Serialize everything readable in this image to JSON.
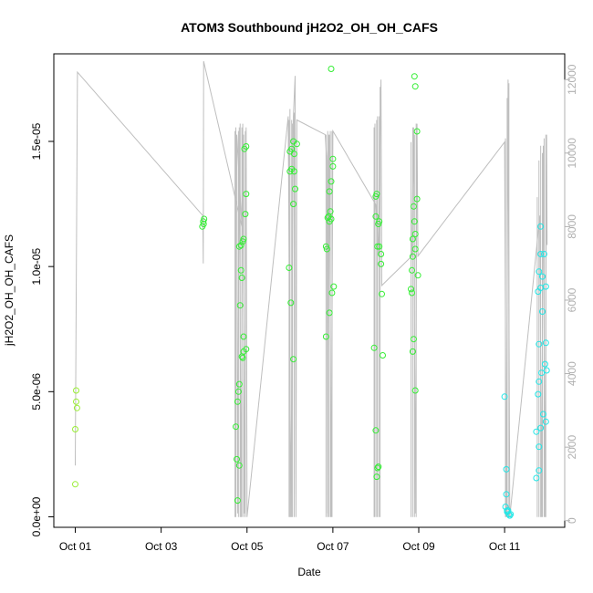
{
  "chart_data": {
    "type": "scatter",
    "title": "ATOM3 Southbound jH2O2_OH_OH_CAFS",
    "xlabel": "Date",
    "ylabel": "jH2O2_OH_OH_CAFS",
    "x_ticks": [
      {
        "label": "Oct 01",
        "day": 1
      },
      {
        "label": "Oct 03",
        "day": 3
      },
      {
        "label": "Oct 05",
        "day": 5
      },
      {
        "label": "Oct 07",
        "day": 7
      },
      {
        "label": "Oct 09",
        "day": 9
      },
      {
        "label": "Oct 11",
        "day": 11
      }
    ],
    "xlim": [
      0.5,
      12.4
    ],
    "y_ticks": [
      {
        "label": "0.0e+00",
        "value": 0
      },
      {
        "label": "5.0e-06",
        "value": 5e-06
      },
      {
        "label": "1.0e-05",
        "value": 1e-05
      },
      {
        "label": "1.5e-05",
        "value": 1.5e-05
      }
    ],
    "ylim": [
      -4.2e-07,
      1.85e-05
    ],
    "y2_ticks": [
      {
        "label": "0",
        "value": 0
      },
      {
        "label": "2000",
        "value": 2000
      },
      {
        "label": "4000",
        "value": 4000
      },
      {
        "label": "6000",
        "value": 6000
      },
      {
        "label": "8000",
        "value": 8000
      },
      {
        "label": "10000",
        "value": 10000
      },
      {
        "label": "12000",
        "value": 12000
      }
    ],
    "y2lim": [
      -180,
      12700
    ],
    "colors": {
      "altitude_line": "#bebebe",
      "points_green": "#33ee33",
      "points_yellowgreen": "#99ee33",
      "points_cyan": "#22e6e6",
      "axis": "#000000",
      "axis_right": "#b0b0b0"
    },
    "series": [
      {
        "color_key": "points_yellowgreen",
        "points": [
          [
            1.02,
            5.05e-06
          ],
          [
            1.02,
            4.6e-06
          ],
          [
            1.04,
            4.35e-06
          ],
          [
            1.0,
            3.5e-06
          ],
          [
            1.0,
            1.3e-06
          ]
        ]
      },
      {
        "color_key": "points_green",
        "points": [
          [
            3.96,
            1.16e-05
          ],
          [
            3.98,
            1.18e-05
          ],
          [
            4.0,
            1.19e-05
          ],
          [
            3.99,
            1.17e-05
          ],
          [
            4.78,
            6.5e-07
          ],
          [
            4.76,
            2.3e-06
          ],
          [
            4.82,
            2.05e-06
          ],
          [
            4.74,
            3.6e-06
          ],
          [
            4.78,
            4.6e-06
          ],
          [
            4.8,
            5e-06
          ],
          [
            4.82,
            5.3e-06
          ],
          [
            4.88,
            6.4e-06
          ],
          [
            4.9,
            6.35e-06
          ],
          [
            4.92,
            6.6e-06
          ],
          [
            4.98,
            6.7e-06
          ],
          [
            4.92,
            7.2e-06
          ],
          [
            4.84,
            8.45e-06
          ],
          [
            4.88,
            9.55e-06
          ],
          [
            4.86,
            9.85e-06
          ],
          [
            4.82,
            1.08e-05
          ],
          [
            4.86,
            1.085e-05
          ],
          [
            4.9,
            1.1e-05
          ],
          [
            4.92,
            1.11e-05
          ],
          [
            4.96,
            1.21e-05
          ],
          [
            4.98,
            1.29e-05
          ],
          [
            4.98,
            1.48e-05
          ],
          [
            4.94,
            1.47e-05
          ],
          [
            6.0,
            1.46e-05
          ],
          [
            6.04,
            1.47e-05
          ],
          [
            6.08,
            1.5e-05
          ],
          [
            6.1,
            1.45e-05
          ],
          [
            6.16,
            1.49e-05
          ],
          [
            6.0,
            1.38e-05
          ],
          [
            6.04,
            1.39e-05
          ],
          [
            6.1,
            1.38e-05
          ],
          [
            6.12,
            1.31e-05
          ],
          [
            6.08,
            1.25e-05
          ],
          [
            5.98,
            9.95e-06
          ],
          [
            6.02,
            8.55e-06
          ],
          [
            6.08,
            6.3e-06
          ],
          [
            6.84,
            1.08e-05
          ],
          [
            6.86,
            1.07e-05
          ],
          [
            6.92,
            1.18e-05
          ],
          [
            6.88,
            1.195e-05
          ],
          [
            6.9,
            1.2e-05
          ],
          [
            6.94,
            1.22e-05
          ],
          [
            6.96,
            1.19e-05
          ],
          [
            6.92,
            1.3e-05
          ],
          [
            6.96,
            1.34e-05
          ],
          [
            7.0,
            1.43e-05
          ],
          [
            7.0,
            1.4e-05
          ],
          [
            6.84,
            7.2e-06
          ],
          [
            6.92,
            8.15e-06
          ],
          [
            6.98,
            8.95e-06
          ],
          [
            7.02,
            9.2e-06
          ],
          [
            6.96,
            1.79e-05
          ],
          [
            7.96,
            6.75e-06
          ],
          [
            8.0,
            3.45e-06
          ],
          [
            8.06,
            2e-06
          ],
          [
            8.04,
            1.95e-06
          ],
          [
            8.02,
            1.6e-06
          ],
          [
            8.16,
            6.45e-06
          ],
          [
            8.14,
            8.9e-06
          ],
          [
            8.12,
            1.01e-05
          ],
          [
            8.04,
            1.08e-05
          ],
          [
            8.08,
            1.08e-05
          ],
          [
            8.12,
            1.05e-05
          ],
          [
            8.0,
            1.2e-05
          ],
          [
            8.08,
            1.18e-05
          ],
          [
            8.06,
            1.17e-05
          ],
          [
            8.0,
            1.28e-05
          ],
          [
            8.02,
            1.29e-05
          ],
          [
            8.86,
            6.6e-06
          ],
          [
            8.88,
            7.1e-06
          ],
          [
            8.92,
            5.05e-06
          ],
          [
            8.84,
            8.95e-06
          ],
          [
            8.82,
            9.1e-06
          ],
          [
            8.84,
            9.85e-06
          ],
          [
            8.98,
            9.65e-06
          ],
          [
            8.86,
            1.04e-05
          ],
          [
            8.92,
            1.07e-05
          ],
          [
            8.86,
            1.11e-05
          ],
          [
            8.92,
            1.13e-05
          ],
          [
            8.9,
            1.18e-05
          ],
          [
            8.88,
            1.24e-05
          ],
          [
            8.96,
            1.27e-05
          ],
          [
            8.9,
            1.76e-05
          ],
          [
            8.92,
            1.72e-05
          ],
          [
            8.96,
            1.54e-05
          ]
        ]
      },
      {
        "color_key": "points_cyan",
        "points": [
          [
            11.0,
            4.8e-06
          ],
          [
            11.04,
            1.9e-06
          ],
          [
            11.04,
            9e-07
          ],
          [
            11.02,
            4e-07
          ],
          [
            11.06,
            2e-07
          ],
          [
            11.1,
            1e-07
          ],
          [
            11.08,
            2.5e-07
          ],
          [
            11.12,
            5e-08
          ],
          [
            11.06,
            2.5e-07
          ],
          [
            11.14,
            1e-07
          ],
          [
            11.74,
            1.55e-06
          ],
          [
            11.8,
            1.85e-06
          ],
          [
            11.8,
            2.8e-06
          ],
          [
            11.74,
            3.4e-06
          ],
          [
            11.84,
            3.55e-06
          ],
          [
            11.96,
            3.8e-06
          ],
          [
            11.9,
            4.1e-06
          ],
          [
            11.78,
            4.9e-06
          ],
          [
            11.8,
            5.4e-06
          ],
          [
            11.86,
            5.75e-06
          ],
          [
            11.98,
            5.85e-06
          ],
          [
            11.94,
            6.1e-06
          ],
          [
            11.8,
            6.9e-06
          ],
          [
            11.96,
            6.95e-06
          ],
          [
            11.88,
            8.2e-06
          ],
          [
            11.78,
            9e-06
          ],
          [
            11.84,
            9.15e-06
          ],
          [
            11.96,
            9.2e-06
          ],
          [
            11.88,
            9.6e-06
          ],
          [
            11.8,
            9.8e-06
          ],
          [
            11.84,
            1.05e-05
          ],
          [
            11.92,
            1.05e-05
          ],
          [
            11.84,
            1.16e-05
          ]
        ]
      }
    ],
    "altitude_series": {
      "color_key": "altitude_line",
      "path": [
        [
          1.0,
          1500
        ],
        [
          1.05,
          12200
        ],
        [
          3.97,
          8300
        ],
        [
          3.98,
          7000
        ],
        [
          3.99,
          12500
        ],
        [
          4.88,
          8000
        ],
        [
          4.76,
          10500
        ],
        [
          4.78,
          200
        ],
        [
          4.82,
          10700
        ],
        [
          4.86,
          100
        ],
        [
          4.9,
          10800
        ],
        [
          4.94,
          200
        ],
        [
          4.98,
          10700
        ],
        [
          5.0,
          100
        ],
        [
          5.96,
          11000
        ],
        [
          6.02,
          100
        ],
        [
          6.08,
          11000
        ],
        [
          6.12,
          12100
        ],
        [
          6.14,
          100
        ],
        [
          6.16,
          10900
        ],
        [
          6.82,
          10500
        ],
        [
          6.86,
          9800
        ],
        [
          6.88,
          200
        ],
        [
          6.92,
          10500
        ],
        [
          6.96,
          100
        ],
        [
          7.0,
          10600
        ],
        [
          8.0,
          8600
        ],
        [
          8.06,
          7300
        ],
        [
          8.12,
          12000
        ],
        [
          8.14,
          6400
        ],
        [
          8.84,
          7200
        ],
        [
          8.88,
          10700
        ],
        [
          8.92,
          200
        ],
        [
          8.96,
          10800
        ],
        [
          8.98,
          7200
        ],
        [
          11.0,
          10300
        ],
        [
          11.04,
          100
        ],
        [
          11.08,
          12000
        ],
        [
          11.12,
          100
        ],
        [
          11.82,
          8300
        ],
        [
          11.86,
          100
        ],
        [
          11.9,
          10200
        ],
        [
          11.94,
          100
        ],
        [
          11.98,
          10500
        ],
        [
          11.99,
          7500
        ]
      ],
      "spikes": [
        [
          4.72,
          100,
          10600
        ],
        [
          4.74,
          100,
          10700
        ],
        [
          4.8,
          100,
          10600
        ],
        [
          4.84,
          100,
          10800
        ],
        [
          4.88,
          100,
          10700
        ],
        [
          4.92,
          100,
          10500
        ],
        [
          4.96,
          100,
          10600
        ],
        [
          5.98,
          100,
          10900
        ],
        [
          6.0,
          100,
          11200
        ],
        [
          6.04,
          100,
          10900
        ],
        [
          6.06,
          100,
          10800
        ],
        [
          6.1,
          100,
          11100
        ],
        [
          6.84,
          100,
          10500
        ],
        [
          6.88,
          100,
          10600
        ],
        [
          6.9,
          100,
          10500
        ],
        [
          6.94,
          100,
          10600
        ],
        [
          6.98,
          100,
          10600
        ],
        [
          7.96,
          100,
          10700
        ],
        [
          7.98,
          100,
          10800
        ],
        [
          8.02,
          100,
          10900
        ],
        [
          8.04,
          100,
          11000
        ],
        [
          8.08,
          100,
          11000
        ],
        [
          8.1,
          100,
          11800
        ],
        [
          8.82,
          100,
          10300
        ],
        [
          8.86,
          100,
          10700
        ],
        [
          8.9,
          100,
          10500
        ],
        [
          8.94,
          100,
          10800
        ],
        [
          11.02,
          100,
          10400
        ],
        [
          11.06,
          100,
          11500
        ],
        [
          11.1,
          100,
          11900
        ],
        [
          11.76,
          100,
          8800
        ],
        [
          11.8,
          100,
          9800
        ],
        [
          11.84,
          100,
          10200
        ],
        [
          11.88,
          100,
          10000
        ],
        [
          11.92,
          100,
          10400
        ],
        [
          11.96,
          100,
          10500
        ]
      ]
    }
  }
}
